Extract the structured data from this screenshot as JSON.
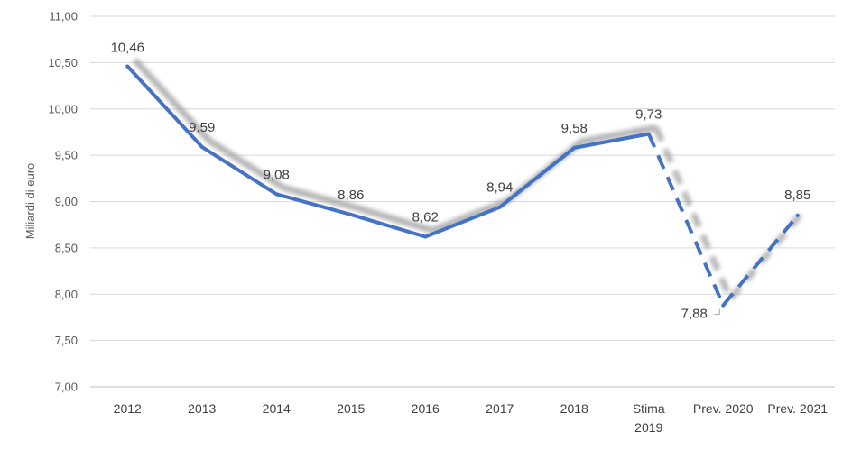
{
  "chart_data": {
    "type": "line",
    "title": "",
    "xlabel": "",
    "ylabel": "Miliardi di euro",
    "ylim": [
      7.0,
      11.0
    ],
    "yticks": [
      "7,00",
      "7,50",
      "8,00",
      "8,50",
      "9,00",
      "9,50",
      "10,00",
      "10,50",
      "11,00"
    ],
    "ytick_values": [
      7.0,
      7.5,
      8.0,
      8.5,
      9.0,
      9.5,
      10.0,
      10.5,
      11.0
    ],
    "grid": true,
    "categories": [
      {
        "line1": "2012",
        "line2": ""
      },
      {
        "line1": "2013",
        "line2": ""
      },
      {
        "line1": "2014",
        "line2": ""
      },
      {
        "line1": "2015",
        "line2": ""
      },
      {
        "line1": "2016",
        "line2": ""
      },
      {
        "line1": "2017",
        "line2": ""
      },
      {
        "line1": "2018",
        "line2": ""
      },
      {
        "line1": "Stima",
        "line2": "2019"
      },
      {
        "line1": "Prev. 2020",
        "line2": ""
      },
      {
        "line1": "Prev. 2021",
        "line2": ""
      }
    ],
    "series": [
      {
        "name": "Miliardi di euro",
        "color": "#4472C4",
        "values": [
          10.46,
          9.59,
          9.08,
          8.86,
          8.62,
          8.94,
          9.58,
          9.73,
          7.88,
          8.85
        ],
        "labels": [
          "10,46",
          "9,59",
          "9,08",
          "8,86",
          "8,62",
          "8,94",
          "9,58",
          "9,73",
          "7,88",
          "8,85"
        ],
        "solid_until_index": 7
      }
    ]
  }
}
